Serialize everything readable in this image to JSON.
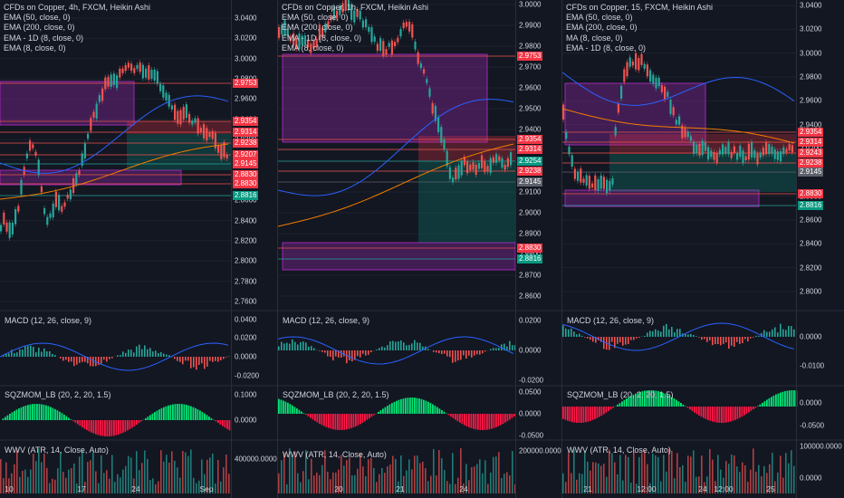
{
  "colors": {
    "bg": "#131722",
    "up": "#26a69a",
    "down": "#ef5350",
    "purple": "#9c27b0",
    "teal_zone": "#0f3b3a",
    "red_zone": "#5c1f23"
  },
  "panels": [
    {
      "legend": [
        "CFDs on Copper, 4h, FXCM, Heikin Ashi",
        "EMA (50, close, 0)",
        "EMA (200, close, 0)",
        "EMA - 1D (8, close, 0)",
        "EMA (8, close, 0)"
      ],
      "price_ticks": [
        "3.0400",
        "3.0200",
        "3.0000",
        "2.9800",
        "2.9600",
        "2.9400",
        "2.9200",
        "2.9000",
        "2.8800",
        "2.8600",
        "2.8400",
        "2.8200",
        "2.8000",
        "2.7800",
        "2.7600"
      ],
      "badges": [
        {
          "text": "2.9753",
          "color": "#f23645"
        },
        {
          "text": "2.9354",
          "color": "#f23645"
        },
        {
          "text": "2.9314",
          "color": "#f23645"
        },
        {
          "text": "2.9238",
          "color": "#f23645"
        },
        {
          "text": "2.9207",
          "color": "#f23645"
        },
        {
          "text": "2.9145",
          "color": "#f23645"
        },
        {
          "text": "2.8830",
          "color": "#f23645"
        },
        {
          "text": "2.8830",
          "color": "#f23645"
        },
        {
          "text": "2.8816",
          "color": "#089981"
        }
      ],
      "macd_label": "MACD (12, 26, close, 9)",
      "macd_ticks": [
        "0.0400",
        "0.0200",
        "0.0000",
        "-0.0200"
      ],
      "sqz_label": "SQZMOM_LB (20, 2, 20, 1.5)",
      "sqz_ticks": [
        "0.1000",
        "0.0000"
      ],
      "wwv_label": "WWV (ATR, 14, Close, Auto)",
      "wwv_ticks": [
        "400000.0000"
      ],
      "x_ticks": [
        "10",
        "17",
        "24",
        "Sep"
      ]
    },
    {
      "legend": [
        "CFDs on Copper, 1h, FXCM, Heikin Ashi",
        "EMA (50, close, 0)",
        "EMA (200, close, 0)",
        "EMA - 1D (8, close, 0)",
        "EMA (8, close, 0)"
      ],
      "price_ticks": [
        "3.0000",
        "2.9900",
        "2.9800",
        "2.9700",
        "2.9600",
        "2.9500",
        "2.9400",
        "2.9300",
        "2.9200",
        "2.9100",
        "2.9000",
        "2.8900",
        "2.8800",
        "2.8700",
        "2.8600"
      ],
      "badges": [
        {
          "text": "2.9753",
          "color": "#f23645"
        },
        {
          "text": "2.9354",
          "color": "#f23645"
        },
        {
          "text": "2.9314",
          "color": "#f23645"
        },
        {
          "text": "2.9254",
          "color": "#089981"
        },
        {
          "text": "2.9238",
          "color": "#f23645"
        },
        {
          "text": "2.9145",
          "color": "#5d606b"
        },
        {
          "text": "2.8830",
          "color": "#f23645"
        },
        {
          "text": "2.8816",
          "color": "#089981"
        }
      ],
      "macd_label": "MACD (12, 26, close, 9)",
      "macd_ticks": [
        "0.0200",
        "0.0000",
        "-0.0200"
      ],
      "sqz_label": "SQZMOM_LB (20, 2, 20, 1.5)",
      "sqz_ticks": [
        "0.0500",
        "0.0000",
        "-0.0500"
      ],
      "wwv_label": "WWV (ATR, 14, Close, Auto)",
      "wwv_ticks": [
        "200000.0000"
      ],
      "x_ticks": [
        "20",
        "21",
        "24"
      ]
    },
    {
      "legend": [
        "CFDs on Copper, 15, FXCM, Heikin Ashi",
        "EMA (50, close, 0)",
        "EMA (200, close, 0)",
        "MA (8, close, 0)",
        "EMA - 1D (8, close, 0)"
      ],
      "price_ticks": [
        "3.0400",
        "3.0200",
        "3.0000",
        "2.9800",
        "2.9600",
        "2.9400",
        "2.9200",
        "2.9000",
        "2.8800",
        "2.8600",
        "2.8400",
        "2.8200",
        "2.8000"
      ],
      "badges": [
        {
          "text": "2.9354",
          "color": "#f23645"
        },
        {
          "text": "2.9314",
          "color": "#f23645"
        },
        {
          "text": "2.9243",
          "color": "#f23645"
        },
        {
          "text": "2.9238",
          "color": "#f23645"
        },
        {
          "text": "2.9145",
          "color": "#5d606b"
        },
        {
          "text": "2.8830",
          "color": "#f23645"
        },
        {
          "text": "2.8816",
          "color": "#089981"
        }
      ],
      "macd_label": "MACD (12, 26, close, 9)",
      "macd_ticks": [
        "0.0000",
        "-0.0100"
      ],
      "sqz_label": "SQZMOM_LB (20, 2, 20, 1.5)",
      "sqz_ticks": [
        "0.0000",
        "-0.0500"
      ],
      "wwv_label": "WWV (ATR, 14, Close, Auto)",
      "wwv_ticks": [
        "100000.0000",
        "0.0000"
      ],
      "x_ticks": [
        "21",
        "12:00",
        "24",
        "12:00",
        "25"
      ]
    }
  ]
}
